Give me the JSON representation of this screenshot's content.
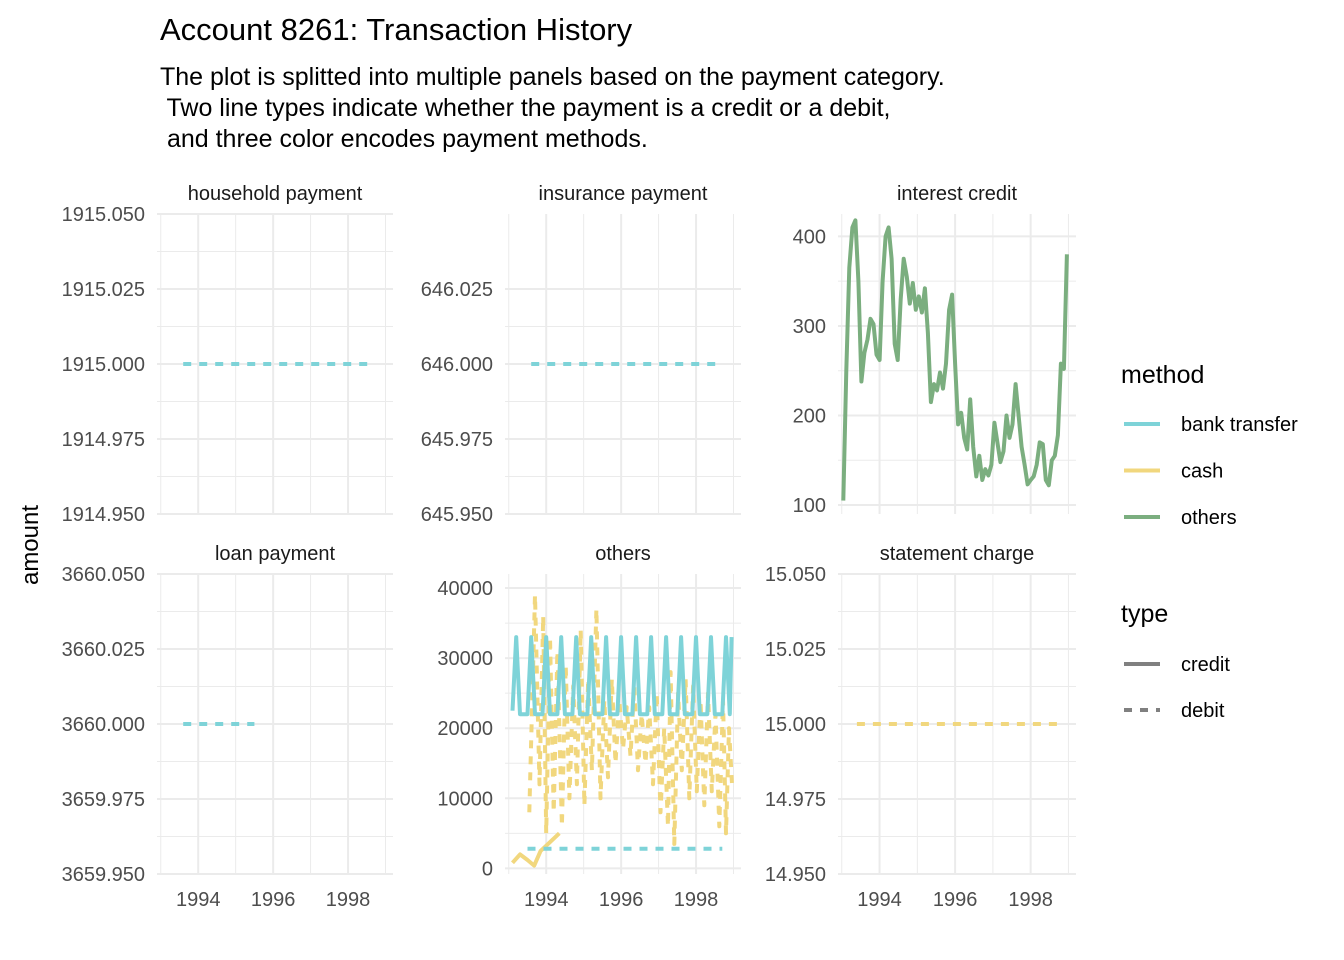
{
  "title": "Account 8261: Transaction History",
  "subtitle": [
    "The plot is splitted into multiple panels based on the payment category.",
    " Two line types indicate whether the payment is a credit or a debit,",
    " and three color encodes payment methods."
  ],
  "colors": {
    "bank transfer": "#7ED3D8",
    "cash": "#F1D77E",
    "others": "#7BAE7F",
    "grid": "#EBEBEB"
  },
  "chart_data": {
    "type": "line",
    "ylabel": "amount",
    "x_ticks": [
      "1994",
      "1996",
      "1998"
    ],
    "x_range": [
      1992.9,
      1999.2
    ],
    "legend": {
      "placement": "right",
      "method": {
        "title": "method",
        "items": [
          "bank transfer",
          "cash",
          "others"
        ]
      },
      "type": {
        "title": "type",
        "items": [
          "credit",
          "debit"
        ]
      }
    },
    "panels": [
      {
        "label": "household payment",
        "ylim": [
          1914.95,
          1915.05
        ],
        "y_ticks": [
          "1914.950",
          "1914.975",
          "1915.000",
          "1915.025",
          "1915.050"
        ],
        "series": [
          {
            "method": "bank transfer",
            "type": "debit",
            "points": [
              [
                1993.6,
                1915.0
              ],
              [
                1998.7,
                1915.0
              ]
            ]
          }
        ]
      },
      {
        "label": "insurance payment",
        "ylim": [
          645.95,
          646.05
        ],
        "y_ticks": [
          "645.950",
          "645.975",
          "646.000",
          "646.025"
        ],
        "series": [
          {
            "method": "bank transfer",
            "type": "debit",
            "points": [
              [
                1993.6,
                646.0
              ],
              [
                1998.7,
                646.0
              ]
            ]
          }
        ]
      },
      {
        "label": "interest credit",
        "ylim": [
          90,
          425
        ],
        "y_ticks": [
          "100",
          "200",
          "300",
          "400"
        ],
        "series": [
          {
            "method": "others",
            "type": "credit",
            "points": [
              [
                1993.04,
                105
              ],
              [
                1993.12,
                250
              ],
              [
                1993.2,
                365
              ],
              [
                1993.28,
                410
              ],
              [
                1993.36,
                418
              ],
              [
                1993.44,
                350
              ],
              [
                1993.52,
                238
              ],
              [
                1993.6,
                270
              ],
              [
                1993.68,
                285
              ],
              [
                1993.76,
                308
              ],
              [
                1993.84,
                302
              ],
              [
                1993.92,
                268
              ],
              [
                1994.0,
                262
              ],
              [
                1994.08,
                350
              ],
              [
                1994.16,
                400
              ],
              [
                1994.24,
                410
              ],
              [
                1994.32,
                375
              ],
              [
                1994.4,
                280
              ],
              [
                1994.48,
                262
              ],
              [
                1994.56,
                330
              ],
              [
                1994.64,
                375
              ],
              [
                1994.72,
                355
              ],
              [
                1994.8,
                325
              ],
              [
                1994.88,
                348
              ],
              [
                1994.96,
                318
              ],
              [
                1995.04,
                333
              ],
              [
                1995.12,
                315
              ],
              [
                1995.2,
                342
              ],
              [
                1995.28,
                292
              ],
              [
                1995.36,
                215
              ],
              [
                1995.44,
                235
              ],
              [
                1995.52,
                228
              ],
              [
                1995.6,
                248
              ],
              [
                1995.68,
                230
              ],
              [
                1995.76,
                258
              ],
              [
                1995.84,
                318
              ],
              [
                1995.92,
                335
              ],
              [
                1996.0,
                258
              ],
              [
                1996.08,
                190
              ],
              [
                1996.16,
                203
              ],
              [
                1996.24,
                175
              ],
              [
                1996.32,
                162
              ],
              [
                1996.4,
                218
              ],
              [
                1996.48,
                165
              ],
              [
                1996.56,
                132
              ],
              [
                1996.64,
                155
              ],
              [
                1996.72,
                128
              ],
              [
                1996.8,
                140
              ],
              [
                1996.88,
                133
              ],
              [
                1996.96,
                145
              ],
              [
                1997.04,
                192
              ],
              [
                1997.12,
                170
              ],
              [
                1997.2,
                148
              ],
              [
                1997.28,
                160
              ],
              [
                1997.36,
                200
              ],
              [
                1997.44,
                175
              ],
              [
                1997.52,
                190
              ],
              [
                1997.6,
                235
              ],
              [
                1997.68,
                200
              ],
              [
                1997.76,
                165
              ],
              [
                1997.84,
                145
              ],
              [
                1997.92,
                123
              ],
              [
                1998.0,
                128
              ],
              [
                1998.08,
                132
              ],
              [
                1998.16,
                145
              ],
              [
                1998.24,
                170
              ],
              [
                1998.32,
                168
              ],
              [
                1998.4,
                128
              ],
              [
                1998.48,
                122
              ],
              [
                1998.56,
                150
              ],
              [
                1998.64,
                155
              ],
              [
                1998.72,
                178
              ],
              [
                1998.8,
                258
              ],
              [
                1998.88,
                252
              ],
              [
                1998.96,
                380
              ]
            ]
          }
        ]
      },
      {
        "label": "loan payment",
        "ylim": [
          3659.95,
          3660.05
        ],
        "y_ticks": [
          "3659.950",
          "3659.975",
          "3660.000",
          "3660.025",
          "3660.050"
        ],
        "series": [
          {
            "method": "bank transfer",
            "type": "debit",
            "points": [
              [
                1993.6,
                3660.0
              ],
              [
                1995.5,
                3660.0
              ]
            ]
          }
        ]
      },
      {
        "label": "others",
        "ylim": [
          -800,
          42000
        ],
        "y_ticks": [
          "0",
          "10000",
          "20000",
          "30000",
          "40000"
        ],
        "series": [
          {
            "method": "cash",
            "type": "debit",
            "points": [
              [
                1993.55,
                8000
              ],
              [
                1993.7,
                39000
              ],
              [
                1993.82,
                12000
              ],
              [
                1993.92,
                36000
              ],
              [
                1994.0,
                5000
              ],
              [
                1994.1,
                33000
              ],
              [
                1994.2,
                8000
              ],
              [
                1994.3,
                31000
              ],
              [
                1994.42,
                6000
              ],
              [
                1994.52,
                29000
              ],
              [
                1994.62,
                10000
              ],
              [
                1994.72,
                26000
              ],
              [
                1994.82,
                12000
              ],
              [
                1994.92,
                34000
              ],
              [
                1995.02,
                9000
              ],
              [
                1995.12,
                27000
              ],
              [
                1995.22,
                14000
              ],
              [
                1995.34,
                37000
              ],
              [
                1995.45,
                10000
              ],
              [
                1995.55,
                24000
              ],
              [
                1995.65,
                13000
              ],
              [
                1995.75,
                27000
              ],
              [
                1995.85,
                15000
              ],
              [
                1995.95,
                24000
              ],
              [
                1996.05,
                17000
              ],
              [
                1996.15,
                23000
              ],
              [
                1996.25,
                16000
              ],
              [
                1996.35,
                26000
              ],
              [
                1996.45,
                14000
              ],
              [
                1996.55,
                22000
              ],
              [
                1996.65,
                15000
              ],
              [
                1996.75,
                23000
              ],
              [
                1996.85,
                12000
              ],
              [
                1996.95,
                25000
              ],
              [
                1997.05,
                8000
              ],
              [
                1997.15,
                20000
              ],
              [
                1997.25,
                6000
              ],
              [
                1997.32,
                28000
              ],
              [
                1997.42,
                3500
              ],
              [
                1997.52,
                25000
              ],
              [
                1997.62,
                14000
              ],
              [
                1997.72,
                27000
              ],
              [
                1997.82,
                10000
              ],
              [
                1997.92,
                26000
              ],
              [
                1998.02,
                11000
              ],
              [
                1998.12,
                24000
              ],
              [
                1998.22,
                9000
              ],
              [
                1998.32,
                25000
              ],
              [
                1998.42,
                11000
              ],
              [
                1998.52,
                22000
              ],
              [
                1998.62,
                6000
              ],
              [
                1998.72,
                24000
              ],
              [
                1998.8,
                5000
              ],
              [
                1998.88,
                20000
              ],
              [
                1998.96,
                12000
              ]
            ]
          },
          {
            "method": "cash",
            "type": "credit",
            "points": [
              [
                1993.1,
                800
              ],
              [
                1993.3,
                2000
              ],
              [
                1993.5,
                1200
              ],
              [
                1993.68,
                400
              ],
              [
                1993.85,
                2500
              ],
              [
                1994.05,
                3500
              ],
              [
                1994.35,
                5000
              ]
            ]
          },
          {
            "method": "bank transfer",
            "type": "credit",
            "points": [
              [
                1993.1,
                22500
              ],
              [
                1993.2,
                33000
              ],
              [
                1993.3,
                22000
              ],
              [
                1993.5,
                22000
              ],
              [
                1993.6,
                33000
              ],
              [
                1993.7,
                22000
              ],
              [
                1993.9,
                22000
              ],
              [
                1994.0,
                33000
              ],
              [
                1994.1,
                22000
              ],
              [
                1994.3,
                22000
              ],
              [
                1994.4,
                33000
              ],
              [
                1994.5,
                22000
              ],
              [
                1994.7,
                22000
              ],
              [
                1994.8,
                33000
              ],
              [
                1994.9,
                22000
              ],
              [
                1995.1,
                22000
              ],
              [
                1995.2,
                33000
              ],
              [
                1995.3,
                22000
              ],
              [
                1995.5,
                22000
              ],
              [
                1995.6,
                33000
              ],
              [
                1995.7,
                22000
              ],
              [
                1995.9,
                22000
              ],
              [
                1996.0,
                33000
              ],
              [
                1996.1,
                22000
              ],
              [
                1996.3,
                22000
              ],
              [
                1996.4,
                33000
              ],
              [
                1996.5,
                22000
              ],
              [
                1996.7,
                22000
              ],
              [
                1996.8,
                33000
              ],
              [
                1996.9,
                22000
              ],
              [
                1997.1,
                22000
              ],
              [
                1997.2,
                33000
              ],
              [
                1997.3,
                22000
              ],
              [
                1997.5,
                22000
              ],
              [
                1997.6,
                33000
              ],
              [
                1997.7,
                22000
              ],
              [
                1997.9,
                22000
              ],
              [
                1998.0,
                33000
              ],
              [
                1998.1,
                22000
              ],
              [
                1998.3,
                22000
              ],
              [
                1998.4,
                33000
              ],
              [
                1998.5,
                22000
              ],
              [
                1998.7,
                22000
              ],
              [
                1998.8,
                33000
              ],
              [
                1998.9,
                22000
              ],
              [
                1998.95,
                33000
              ]
            ]
          },
          {
            "method": "bank transfer",
            "type": "debit",
            "points": [
              [
                1993.5,
                2800
              ],
              [
                1998.7,
                2800
              ]
            ]
          }
        ]
      },
      {
        "label": "statement charge",
        "ylim": [
          14.95,
          15.05
        ],
        "y_ticks": [
          "14.950",
          "14.975",
          "15.000",
          "15.025",
          "15.050"
        ],
        "series": [
          {
            "method": "cash",
            "type": "debit",
            "points": [
              [
                1993.4,
                15.0
              ],
              [
                1998.7,
                15.0
              ]
            ]
          }
        ]
      }
    ]
  }
}
